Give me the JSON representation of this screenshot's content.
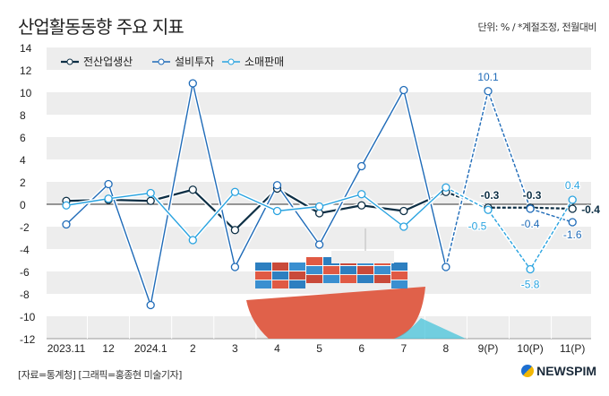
{
  "header": {
    "title": "산업활동동향 주요 지표",
    "unit_note": "단위: % / *계절조정, 전월대비"
  },
  "footer": {
    "source": "[자료=통계청] [그래픽=홍종현 미술기자]",
    "logo": "NEWSPIM"
  },
  "colors": {
    "production": "#0d2f45",
    "investment": "#1f6bb8",
    "retail": "#29a3e0",
    "band": "#ededed"
  },
  "chart_data": {
    "type": "line",
    "title": "산업활동동향 주요 지표",
    "categories": [
      "2023.11",
      "12",
      "2024.1",
      "2",
      "3",
      "4",
      "5",
      "6",
      "7",
      "8",
      "9(P)",
      "10(P)",
      "11(P)"
    ],
    "yticks": [
      14,
      12,
      10,
      8,
      6,
      4,
      2,
      0,
      -2,
      -4,
      -6,
      -8,
      -10,
      -12
    ],
    "ylim": [
      -12,
      14
    ],
    "legend_position": "top-left",
    "grid": "alternating horizontal bands",
    "dashed_from_category": "8",
    "series": [
      {
        "name": "전산업생산",
        "color": "#0d2f45",
        "values": [
          0.3,
          0.4,
          0.3,
          1.3,
          -2.3,
          1.4,
          -0.8,
          -0.1,
          -0.6,
          1.1,
          -0.3,
          -0.3,
          -0.4
        ]
      },
      {
        "name": "설비투자",
        "color": "#1f6bb8",
        "values": [
          -1.8,
          1.8,
          -9.0,
          10.8,
          -5.6,
          1.7,
          -3.6,
          3.4,
          10.2,
          -5.6,
          10.1,
          -0.4,
          -1.6
        ]
      },
      {
        "name": "소매판매",
        "color": "#29a3e0",
        "values": [
          -0.1,
          0.5,
          1.0,
          -3.2,
          1.1,
          -0.6,
          -0.2,
          0.9,
          -2.0,
          1.5,
          -0.5,
          -5.8,
          0.4
        ]
      }
    ],
    "data_labels": [
      {
        "series": 1,
        "index": 10,
        "text": "10.1"
      },
      {
        "series": 0,
        "index": 10,
        "text": "-0.3"
      },
      {
        "series": 0,
        "index": 11,
        "text": "-0.3"
      },
      {
        "series": 0,
        "index": 12,
        "text": "-0.4"
      },
      {
        "series": 2,
        "index": 10,
        "text": "-0.5"
      },
      {
        "series": 1,
        "index": 11,
        "text": "-0.4"
      },
      {
        "series": 2,
        "index": 11,
        "text": "-5.8"
      },
      {
        "series": 2,
        "index": 12,
        "text": "0.4"
      },
      {
        "series": 1,
        "index": 12,
        "text": "-1.6"
      }
    ]
  }
}
